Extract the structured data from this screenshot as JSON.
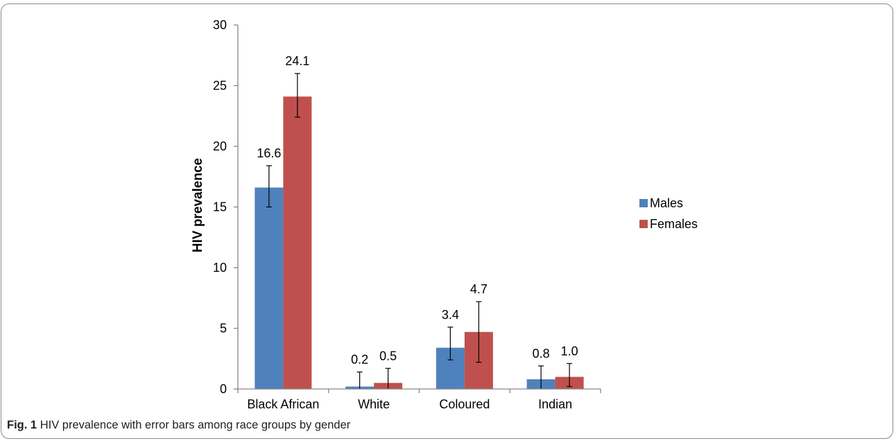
{
  "caption": {
    "label": "Fig. 1",
    "text": "HIV prevalence with error bars among race groups by gender"
  },
  "chart_data": {
    "type": "bar",
    "title": "",
    "xlabel": "",
    "ylabel": "HIV prevalence",
    "ylim": [
      0,
      30
    ],
    "yticks": [
      "0",
      "5",
      "10",
      "15",
      "20",
      "25",
      "30"
    ],
    "grid": false,
    "legend_position": "right",
    "categories": [
      "Black African",
      "White",
      "Coloured",
      "Indian"
    ],
    "series": [
      {
        "name": "Males",
        "color": "#4f81bd",
        "values": [
          16.6,
          0.2,
          3.4,
          0.8
        ],
        "labels": [
          "16.6",
          "0.2",
          "3.4",
          "0.8"
        ],
        "error_low": [
          15.0,
          0.0,
          2.4,
          0.0
        ],
        "error_high": [
          18.4,
          1.4,
          5.1,
          1.9
        ]
      },
      {
        "name": "Females",
        "color": "#c0504d",
        "values": [
          24.1,
          0.5,
          4.7,
          1.0
        ],
        "labels": [
          "24.1",
          "0.5",
          "4.7",
          "1.0"
        ],
        "error_low": [
          22.4,
          0.0,
          2.2,
          0.2
        ],
        "error_high": [
          26.0,
          1.7,
          7.2,
          2.1
        ]
      }
    ]
  }
}
